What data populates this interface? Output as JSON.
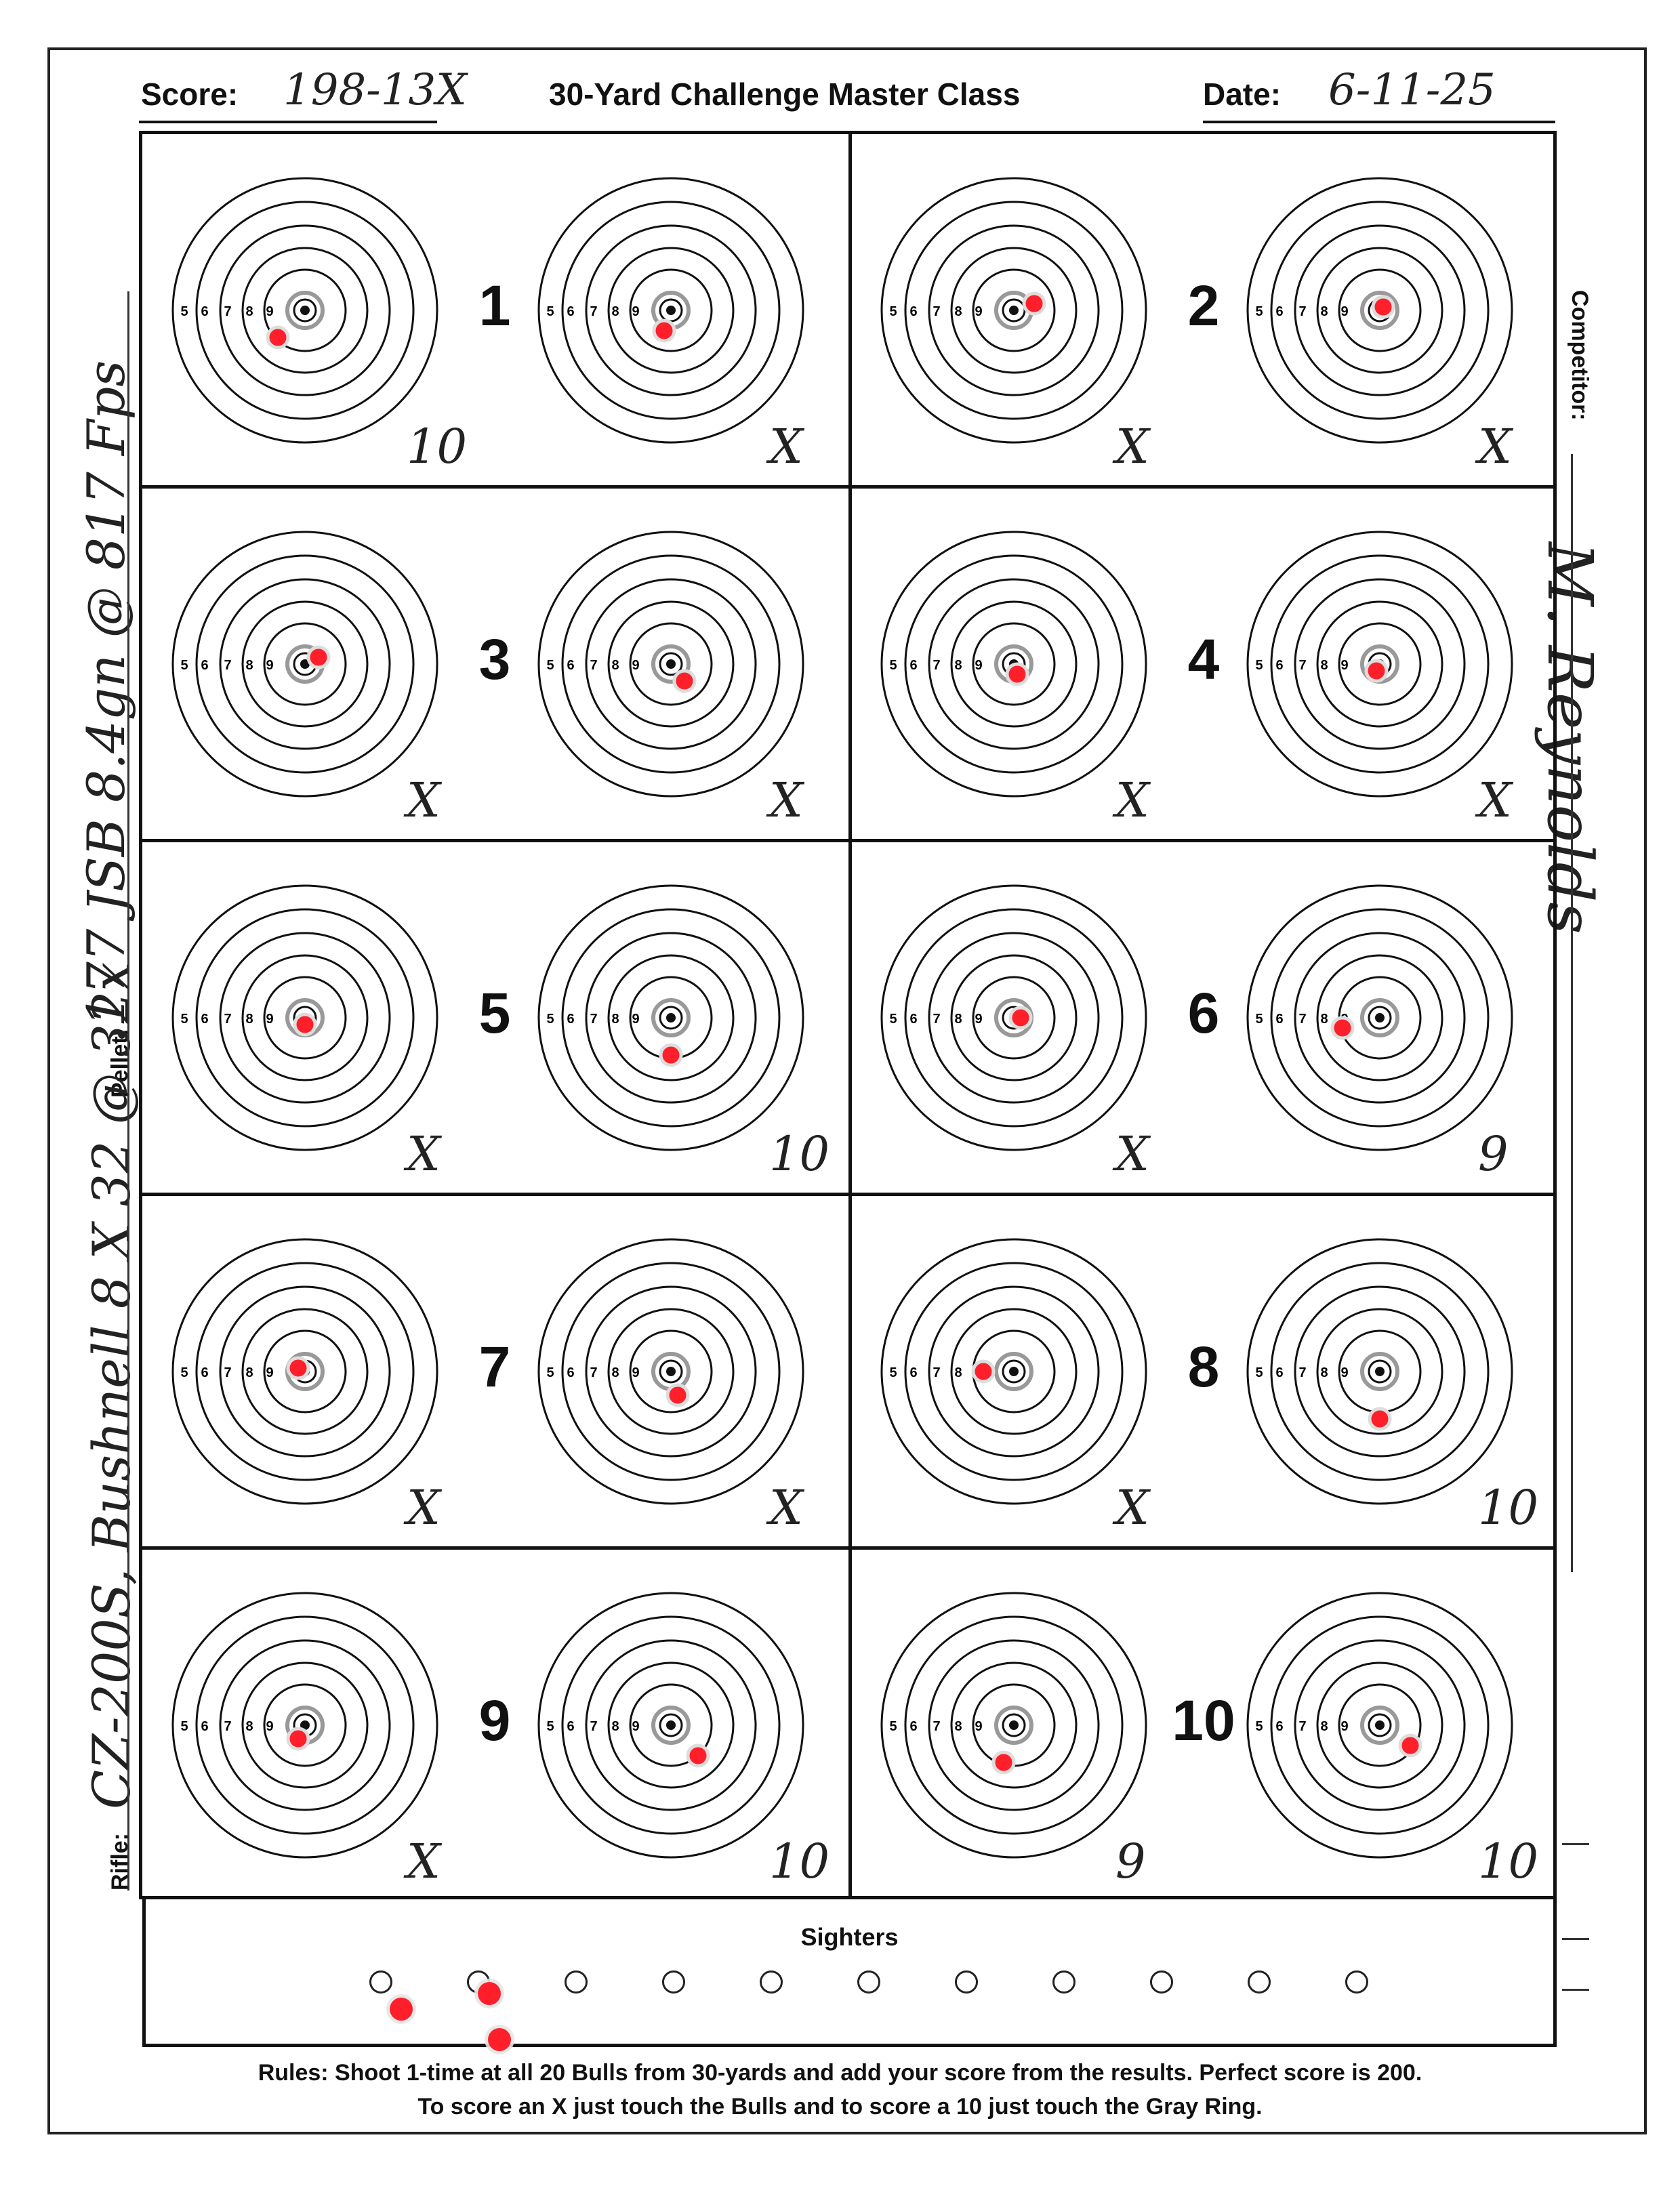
{
  "header": {
    "score_label": "Score:",
    "score_value": "198-13X",
    "title": "30-Yard Challenge Master Class",
    "date_label": "Date:",
    "date_value": "6-11-25"
  },
  "side": {
    "competitor_label": "Competitor:",
    "competitor_value": "M. Reynolds",
    "pellet_label": "Pellet:",
    "pellet_value": ".177 JSB 8.4gn @ 817 Fps",
    "rifle_label": "Rifle:",
    "rifle_value": "CZ-200S, Bushnell 8 X 32 @ 32x"
  },
  "ring_labels": [
    "5",
    "6",
    "7",
    "8",
    "9"
  ],
  "stations": [
    {
      "number": "1",
      "left_score": "10",
      "right_score": "X"
    },
    {
      "number": "2",
      "left_score": "X",
      "right_score": "X"
    },
    {
      "number": "3",
      "left_score": "X",
      "right_score": "X"
    },
    {
      "number": "4",
      "left_score": "X",
      "right_score": "X"
    },
    {
      "number": "5",
      "left_score": "X",
      "right_score": "10"
    },
    {
      "number": "6",
      "left_score": "X",
      "right_score": "9"
    },
    {
      "number": "7",
      "left_score": "X",
      "right_score": "X"
    },
    {
      "number": "8",
      "left_score": "X",
      "right_score": "10"
    },
    {
      "number": "9",
      "left_score": "X",
      "right_score": "10"
    },
    {
      "number": "10",
      "left_score": "9",
      "right_score": "10"
    }
  ],
  "sighters_label": "Sighters",
  "sighter_count": 11,
  "rules": {
    "line1": "Rules: Shoot 1-time at all 20 Bulls from 30-yards and add your score from the results. Perfect score is 200.",
    "line2": "To score an X just touch the Bulls and to score a 10 just touch the Gray Ring."
  },
  "colors": {
    "ink": "#111111",
    "pellet_hole": "#ff1f2a",
    "bull_ring": "#999999"
  }
}
